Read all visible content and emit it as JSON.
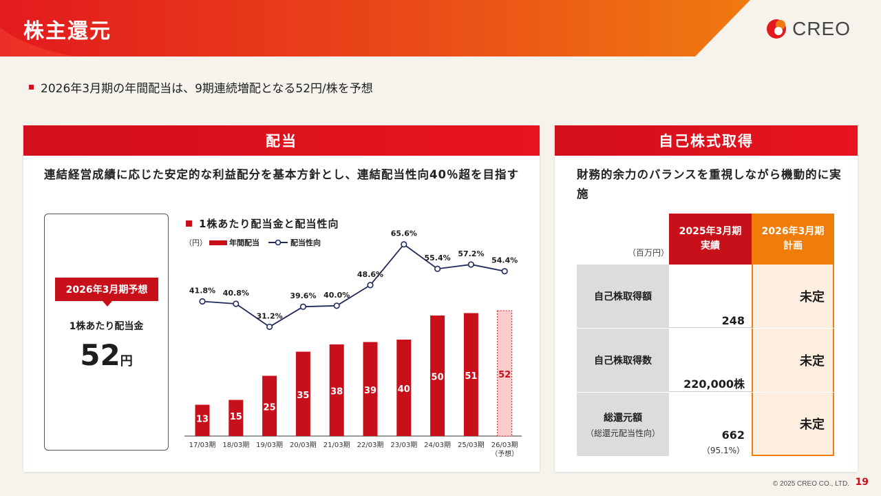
{
  "header": {
    "title": "株主還元",
    "logo_text": "CREO"
  },
  "summary_bullet": "2026年3月期の年間配当は、9期連続増配となる52円/株を予想",
  "dividend_panel": {
    "title": "配当",
    "lead": "連結経営成績に応じた安定的な利益配分を基本方針とし、連結配当性向40％超を目指す",
    "forecast": {
      "badge": "2026年3月期予想",
      "label": "1株あたり配当金",
      "value": "52",
      "unit": "円"
    }
  },
  "chart_data": {
    "type": "bar+line",
    "title": "1株あたり配当金と配当性向",
    "unit_label": "（円）",
    "legend": [
      "年間配当",
      "配当性向"
    ],
    "categories": [
      "17/03期",
      "18/03期",
      "19/03期",
      "20/03期",
      "21/03期",
      "22/03期",
      "23/03期",
      "24/03期",
      "25/03期",
      "26/03期"
    ],
    "category_sub": [
      "",
      "",
      "",
      "",
      "",
      "",
      "",
      "",
      "",
      "（予想）"
    ],
    "series": [
      {
        "name": "年間配当",
        "values": [
          13,
          15,
          25,
          35,
          38,
          39,
          40,
          50,
          51,
          52
        ],
        "color": "#c8101b",
        "forecast_index": 9,
        "forecast_color": "#fbcaca"
      },
      {
        "name": "配当性向",
        "values": [
          41.8,
          40.8,
          31.2,
          39.6,
          40.0,
          48.6,
          65.6,
          55.4,
          57.2,
          54.4
        ],
        "labels": [
          "41.8%",
          "40.8%",
          "31.2%",
          "39.6%",
          "40.0%",
          "48.6%",
          "65.6%",
          "55.4%",
          "57.2%",
          "54.4%"
        ],
        "color": "#1f2a5a"
      }
    ]
  },
  "buyback_panel": {
    "title": "自己株式取得",
    "lead": "財務的余力のバランスを重視しながら機動的に実施",
    "unit": "（百万円）",
    "col_actual": [
      "2025年3月期",
      "実績"
    ],
    "col_plan": [
      "2026年3月期",
      "計画"
    ],
    "rows": [
      {
        "label": "自己株取得額",
        "label_sub": "",
        "actual": "248",
        "actual_sub": "",
        "plan": "未定"
      },
      {
        "label": "自己株取得数",
        "label_sub": "",
        "actual": "220,000株",
        "actual_sub": "",
        "plan": "未定"
      },
      {
        "label": "総還元額",
        "label_sub": "（総還元配当性向）",
        "actual": "662",
        "actual_sub": "（95.1%）",
        "plan": "未定"
      }
    ],
    "colors": {
      "actual_head": "#c8101b",
      "plan_head": "#f07d0a",
      "plan_bg": "#fdeee0",
      "label_bg": "#dcdcdc"
    }
  },
  "footer": {
    "copyright": "© 2025 CREO CO., LTD.",
    "page": "19"
  }
}
